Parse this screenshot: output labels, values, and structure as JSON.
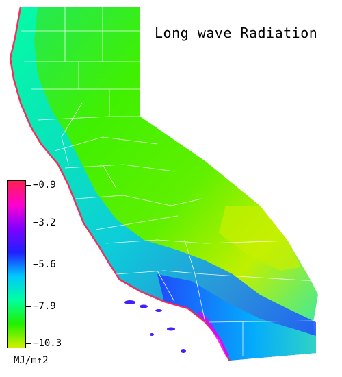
{
  "map": {
    "title": "Long wave Radiation",
    "region": "California",
    "colors": {
      "coast_max": "#ff1a50",
      "magenta": "#e000ff",
      "violet": "#7a00ff",
      "blue": "#1030ff",
      "cyan": "#00d8ff",
      "teal": "#00f0a0",
      "green": "#20f020",
      "yellow_green": "#c0f000",
      "county_lines": "#ffffff"
    }
  },
  "legend": {
    "labels": [
      "−0.9",
      "−3.2",
      "−5.6",
      "−7.9",
      "−10.3"
    ],
    "units": "MJ/m↑2",
    "gradient_stops": [
      "#ff2050",
      "#ff00d0",
      "#8000ff",
      "#2020ff",
      "#00c8ff",
      "#00ffa0",
      "#20f000",
      "#d0f000"
    ]
  }
}
